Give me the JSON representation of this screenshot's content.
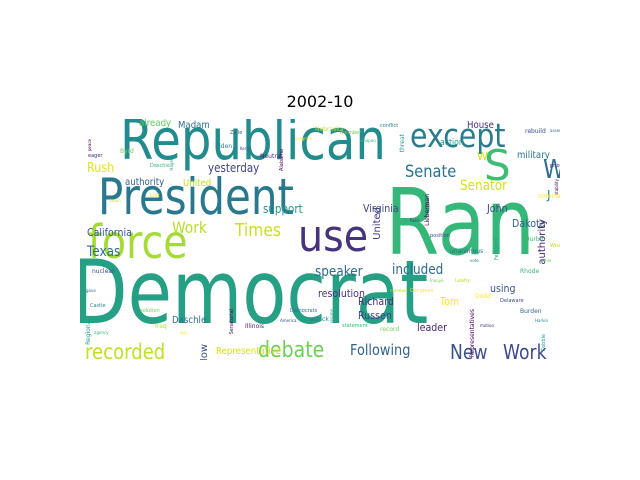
{
  "figure": {
    "title": "2002-10"
  },
  "words": [
    {
      "text": "Democrat",
      "color": "#26a085"
    },
    {
      "text": "Ran",
      "color": "#35b779"
    },
    {
      "text": "Republican",
      "color": "#228b8d"
    },
    {
      "text": "President",
      "color": "#2a788e"
    },
    {
      "text": "force",
      "color": "#a5db36"
    },
    {
      "text": "use",
      "color": "#46337e"
    },
    {
      "text": "except",
      "color": "#2a7b8e"
    },
    {
      "text": "S",
      "color": "#3fbc73"
    },
    {
      "text": "Wa",
      "color": "#2d708e"
    },
    {
      "text": "recorded",
      "color": "#c2df23"
    },
    {
      "text": "debate",
      "color": "#6ece58"
    },
    {
      "text": "New",
      "color": "#3b528b"
    },
    {
      "text": "Work",
      "color": "#3e4989"
    },
    {
      "text": "Following",
      "color": "#33638d"
    },
    {
      "text": "Times",
      "color": "#cae11f"
    },
    {
      "text": "Work",
      "color": "#b8de29"
    },
    {
      "text": "Senate",
      "color": "#2c728e"
    },
    {
      "text": "Senator",
      "color": "#d2e21b"
    },
    {
      "text": "speaker",
      "color": "#2f6c8e"
    },
    {
      "text": "included",
      "color": "#31688e"
    },
    {
      "text": "Texas",
      "color": "#2e6e8e"
    },
    {
      "text": "support",
      "color": "#1f9a8a"
    },
    {
      "text": "Rush",
      "color": "#e2e418"
    },
    {
      "text": "yesterday",
      "color": "#424086"
    },
    {
      "text": "Virginia",
      "color": "#3e4a89"
    },
    {
      "text": "California",
      "color": "#375a8c"
    },
    {
      "text": "resolution",
      "color": "#46337e"
    },
    {
      "text": "Richard",
      "color": "#472d7b"
    },
    {
      "text": "Russen",
      "color": "#414487"
    },
    {
      "text": "Tom",
      "color": "#fde725"
    },
    {
      "text": "leader",
      "color": "#482576"
    },
    {
      "text": "using",
      "color": "#3b528b"
    },
    {
      "text": "John",
      "color": "#3e4989"
    },
    {
      "text": "Dakota",
      "color": "#33638d"
    },
    {
      "text": "military",
      "color": "#2a788e"
    },
    {
      "text": "authority",
      "color": "#482475"
    },
    {
      "text": "United",
      "color": "#433e85"
    },
    {
      "text": "already",
      "color": "#34618d"
    },
    {
      "text": "Madam",
      "color": "#bddf26"
    },
    {
      "text": "House",
      "color": "#5ec962"
    },
    {
      "text": "action",
      "color": "#2d708e"
    },
    {
      "text": "Daschle",
      "color": "#472a7a"
    },
    {
      "text": "Representative",
      "color": "#20a386"
    },
    {
      "text": "nation",
      "color": "#2d708e"
    },
    {
      "text": "secured",
      "color": "#d8e219"
    },
    {
      "text": "Now",
      "color": "#3d4d8a"
    },
    {
      "text": "W",
      "color": "#d0e11c"
    },
    {
      "text": "J",
      "color": "#25848e"
    },
    {
      "text": "E",
      "color": "#35b779"
    }
  ],
  "tiny_words": [
    "peace",
    "eager",
    "nuclear",
    "gave",
    "Castle",
    "Regional",
    "agency",
    "solution",
    "Iraq",
    "war",
    "Senatorial",
    "Illinois",
    "America",
    "Democrats",
    "attack",
    "regime",
    "statement",
    "record",
    "member",
    "Congress",
    "Representatives",
    "motion",
    "Delaware",
    "Burden",
    "Harkin",
    "Cobble",
    "Rhode",
    "Ohio",
    "Wisconsin",
    "nomination",
    "stability",
    "prior",
    "rebuild",
    "assembly",
    "conflict",
    "threat",
    "weapon",
    "member",
    "Nebraska",
    "program",
    "Alabama",
    "Neutral",
    "Kerry",
    "Zelle",
    "Biden",
    "Hagel",
    "Daschle",
    "Byrd",
    "Levin",
    "Lott",
    "Lieberman",
    "Reid",
    "position",
    "unanimous",
    "vote",
    "Feingold",
    "Durbin",
    "Inouye",
    "Leahy",
    "Dodd"
  ]
}
